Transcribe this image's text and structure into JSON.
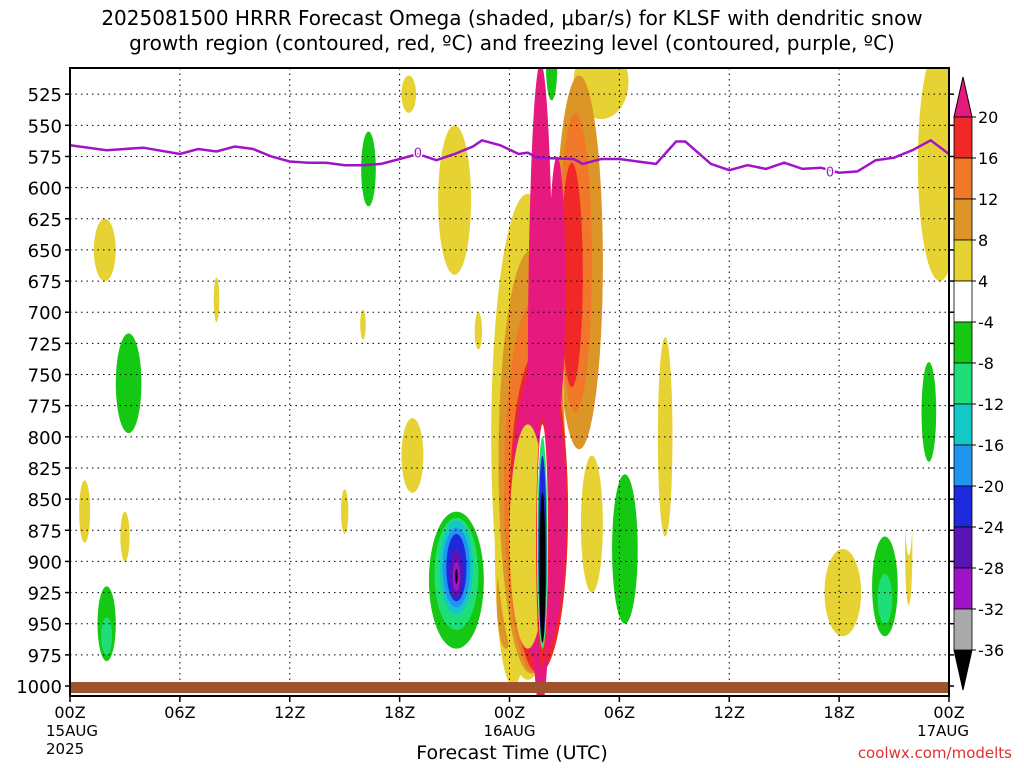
{
  "title_lines": [
    "2025081500 HRRR Forecast Omega (shaded, μbar/s) for KLSF with dendritic snow",
    "growth region (contoured, red, ºC) and freezing level (contoured, purple, ºC)"
  ],
  "credit": "coolwx.com/modelts",
  "chart_data": {
    "type": "heatmap",
    "xlabel": "Forecast Time (UTC)",
    "x_range_hours": [
      0,
      48
    ],
    "x_ticks": [
      {
        "hour": 0,
        "label": "00Z",
        "sub1": "15AUG",
        "sub2": "2025"
      },
      {
        "hour": 6,
        "label": "06Z"
      },
      {
        "hour": 12,
        "label": "12Z"
      },
      {
        "hour": 18,
        "label": "18Z"
      },
      {
        "hour": 24,
        "label": "00Z",
        "sub1": "16AUG"
      },
      {
        "hour": 30,
        "label": "06Z"
      },
      {
        "hour": 36,
        "label": "12Z"
      },
      {
        "hour": 42,
        "label": "18Z"
      },
      {
        "hour": 48,
        "label": "00Z",
        "sub1": "17AUG"
      }
    ],
    "y_range_mb": [
      1008,
      504
    ],
    "y_ticks": [
      525,
      550,
      575,
      600,
      625,
      650,
      675,
      700,
      725,
      750,
      775,
      800,
      825,
      850,
      875,
      900,
      925,
      950,
      975,
      1000
    ],
    "colorbar": {
      "labels": [
        "20",
        "16",
        "12",
        "8",
        "4",
        "-4",
        "-8",
        "-12",
        "-16",
        "-20",
        "-24",
        "-28",
        "-32",
        "-36"
      ],
      "colors": [
        "#e6197f",
        "#f02828",
        "#f07828",
        "#dc9628",
        "#e6d232",
        "#ffffff",
        "#14c814",
        "#1ede78",
        "#14c8c8",
        "#1e96f0",
        "#1e28dc",
        "#5a14b4",
        "#a014c8",
        "#aaaaaa"
      ],
      "top_color": "#e6197f",
      "bottom_color": "#000000"
    },
    "freezing_level": {
      "color": "#a014c8",
      "label": "0",
      "points": [
        [
          0,
          566
        ],
        [
          2,
          570
        ],
        [
          4,
          568
        ],
        [
          6,
          573
        ],
        [
          7,
          569
        ],
        [
          8,
          571
        ],
        [
          9,
          567
        ],
        [
          10,
          569
        ],
        [
          11,
          575
        ],
        [
          12,
          579
        ],
        [
          13,
          580
        ],
        [
          14,
          580
        ],
        [
          15,
          582
        ],
        [
          16,
          582
        ],
        [
          17,
          581
        ],
        [
          18,
          577
        ],
        [
          19,
          573
        ],
        [
          20,
          578
        ],
        [
          21,
          573
        ],
        [
          22,
          567
        ],
        [
          22.5,
          562
        ],
        [
          23.5,
          566
        ],
        [
          24.5,
          573
        ],
        [
          25,
          572
        ],
        [
          25.5,
          576
        ],
        [
          27.5,
          577
        ],
        [
          28,
          581
        ],
        [
          29,
          577
        ],
        [
          30,
          577
        ],
        [
          31,
          579
        ],
        [
          32,
          581
        ],
        [
          33.1,
          563
        ],
        [
          33.6,
          563
        ],
        [
          35,
          581
        ],
        [
          36,
          586
        ],
        [
          37,
          582
        ],
        [
          38,
          585
        ],
        [
          39,
          580
        ],
        [
          40,
          585
        ],
        [
          41,
          584
        ],
        [
          42,
          588
        ],
        [
          43,
          587
        ],
        [
          44,
          578
        ],
        [
          45,
          576
        ],
        [
          46,
          570
        ],
        [
          47,
          562
        ],
        [
          48,
          573
        ]
      ],
      "label_points": [
        [
          19,
          572
        ],
        [
          41.5,
          587
        ]
      ]
    },
    "ground": {
      "color": "#a0522d",
      "top_mb": 1000
    },
    "shaded_regions": [
      {
        "value": -4,
        "x": 2.2,
        "p": 635,
        "rx": 0.7,
        "rp": 40
      },
      {
        "value": 4,
        "x": 1.9,
        "p": 650,
        "rx": 0.6,
        "rp": 25
      },
      {
        "value": -4,
        "x": 8.8,
        "p": 683,
        "rx": 0.3,
        "rp": 40
      },
      {
        "value": 4,
        "x": 8,
        "p": 690,
        "rx": 0.15,
        "rp": 18
      },
      {
        "value": -4,
        "x": 3.2,
        "p": 757,
        "rx": 1.0,
        "rp": 60
      },
      {
        "value": -8,
        "x": 3.2,
        "p": 757,
        "rx": 0.7,
        "rp": 40
      },
      {
        "value": -4,
        "x": 0.8,
        "p": 860,
        "rx": 0.5,
        "rp": 50
      },
      {
        "value": 4,
        "x": 0.8,
        "p": 860,
        "rx": 0.3,
        "rp": 25
      },
      {
        "value": -4,
        "x": 2.0,
        "p": 940,
        "rx": 0.8,
        "rp": 50
      },
      {
        "value": -8,
        "x": 2.0,
        "p": 950,
        "rx": 0.5,
        "rp": 30
      },
      {
        "value": -12,
        "x": 2.0,
        "p": 960,
        "rx": 0.3,
        "rp": 15
      },
      {
        "value": 4,
        "x": 3.0,
        "p": 880,
        "rx": 0.25,
        "rp": 20
      },
      {
        "value": -4,
        "x": 8.0,
        "p": 925,
        "rx": 0.25,
        "rp": 18
      },
      {
        "value": -4,
        "x": 16.0,
        "p": 580,
        "rx": 1.1,
        "rp": 68
      },
      {
        "value": -8,
        "x": 16.3,
        "p": 585,
        "rx": 0.4,
        "rp": 30
      },
      {
        "value": 4,
        "x": 18.5,
        "p": 525,
        "rx": 0.4,
        "rp": 15
      },
      {
        "value": -4,
        "x": 19.2,
        "p": 545,
        "rx": 0.15,
        "rp": 28
      },
      {
        "value": 4,
        "x": 21,
        "p": 610,
        "rx": 0.9,
        "rp": 60
      },
      {
        "value": 4,
        "x": 16,
        "p": 710,
        "rx": 0.15,
        "rp": 12
      },
      {
        "value": -4,
        "x": 17.5,
        "p": 765,
        "rx": 0.15,
        "rp": 15
      },
      {
        "value": 4,
        "x": 18.7,
        "p": 815,
        "rx": 0.6,
        "rp": 30
      },
      {
        "value": 4,
        "x": 15,
        "p": 860,
        "rx": 0.2,
        "rp": 18
      },
      {
        "value": -4,
        "x": 20.5,
        "p": 770,
        "rx": 0.5,
        "rp": 60
      },
      {
        "value": -4,
        "x": 20.9,
        "p": 920,
        "rx": 2.0,
        "rp": 70
      },
      {
        "value": -8,
        "x": 21.1,
        "p": 915,
        "rx": 1.5,
        "rp": 55
      },
      {
        "value": -12,
        "x": 21.1,
        "p": 910,
        "rx": 1.2,
        "rp": 45
      },
      {
        "value": -16,
        "x": 21.1,
        "p": 905,
        "rx": 0.9,
        "rp": 38
      },
      {
        "value": -20,
        "x": 21.1,
        "p": 905,
        "rx": 0.75,
        "rp": 32
      },
      {
        "value": -24,
        "x": 21.1,
        "p": 905,
        "rx": 0.55,
        "rp": 27
      },
      {
        "value": -28,
        "x": 21.1,
        "p": 910,
        "rx": 0.35,
        "rp": 20
      },
      {
        "value": -32,
        "x": 21.1,
        "p": 912,
        "rx": 0.2,
        "rp": 12
      },
      {
        "value": -36,
        "x": 21.1,
        "p": 912,
        "rx": 0.07,
        "rp": 6
      },
      {
        "value": -4,
        "x": 23.0,
        "p": 560,
        "rx": 0.9,
        "rp": 75
      },
      {
        "value": -4,
        "x": 22.7,
        "p": 510,
        "rx": 0.8,
        "rp": 35
      },
      {
        "value": 4,
        "x": 22.3,
        "p": 715,
        "rx": 0.2,
        "rp": 15
      },
      {
        "value": -4,
        "x": 21.8,
        "p": 830,
        "rx": 0.15,
        "rp": 20
      },
      {
        "value": 4,
        "x": 24.2,
        "p": 890,
        "rx": 1.0,
        "rp": 110
      },
      {
        "value": 8,
        "x": 23.8,
        "p": 930,
        "rx": 0.5,
        "rp": 40
      },
      {
        "value": -4,
        "x": 28.0,
        "p": 530,
        "rx": 1.8,
        "rp": 35
      },
      {
        "value": 4,
        "x": 29.0,
        "p": 515,
        "rx": 1.5,
        "rp": 30
      },
      {
        "value": -4,
        "x": 26.3,
        "p": 510,
        "rx": 0.8,
        "rp": 40
      },
      {
        "value": -8,
        "x": 26.3,
        "p": 505,
        "rx": 0.3,
        "rp": 25
      },
      {
        "value": 8,
        "x": 27.8,
        "p": 660,
        "rx": 1.3,
        "rp": 150
      },
      {
        "value": 12,
        "x": 27.6,
        "p": 660,
        "rx": 0.9,
        "rp": 120
      },
      {
        "value": 16,
        "x": 27.4,
        "p": 670,
        "rx": 0.6,
        "rp": 90
      },
      {
        "value": -4,
        "x": 30.3,
        "p": 780,
        "rx": 1.2,
        "rp": 165
      },
      {
        "value": -8,
        "x": 30.3,
        "p": 890,
        "rx": 0.7,
        "rp": 60
      },
      {
        "value": -4,
        "x": 33.2,
        "p": 790,
        "rx": 0.4,
        "rp": 60
      },
      {
        "value": 4,
        "x": 28.5,
        "p": 870,
        "rx": 0.6,
        "rp": 55
      },
      {
        "value": 4,
        "x": 25.0,
        "p": 800,
        "rx": 2.0,
        "rp": 195
      },
      {
        "value": 8,
        "x": 25.2,
        "p": 820,
        "rx": 1.8,
        "rp": 170
      },
      {
        "value": 12,
        "x": 25.4,
        "p": 840,
        "rx": 1.7,
        "rp": 150
      },
      {
        "value": 16,
        "x": 25.6,
        "p": 860,
        "rx": 1.6,
        "rp": 130
      },
      {
        "value": 20,
        "x": 25.6,
        "p": 860,
        "rx": 1.5,
        "rp": 120
      },
      {
        "value": 20,
        "x": 25.7,
        "p": 760,
        "rx": 0.7,
        "rp": 260
      },
      {
        "value": 20,
        "x": 26.6,
        "p": 680,
        "rx": 0.45,
        "rp": 105
      },
      {
        "value": 4,
        "x": 25.0,
        "p": 880,
        "rx": 1.0,
        "rp": 90
      },
      {
        "value": 16,
        "x": 25.8,
        "p": 885,
        "rx": 0.35,
        "rp": 100
      },
      {
        "value": -4,
        "x": 25.8,
        "p": 880,
        "rx": 0.3,
        "rp": 90
      },
      {
        "value": -12,
        "x": 25.8,
        "p": 885,
        "rx": 0.27,
        "rp": 85
      },
      {
        "value": -24,
        "x": 25.8,
        "p": 890,
        "rx": 0.22,
        "rp": 75
      },
      {
        "value": -36,
        "x": 25.8,
        "p": 905,
        "rx": 0.16,
        "rp": 60
      },
      {
        "value": 4,
        "x": 42.2,
        "p": 925,
        "rx": 1.0,
        "rp": 35
      },
      {
        "value": -4,
        "x": 44.5,
        "p": 920,
        "rx": 1.2,
        "rp": 70
      },
      {
        "value": -8,
        "x": 44.5,
        "p": 920,
        "rx": 0.7,
        "rp": 40
      },
      {
        "value": -12,
        "x": 44.5,
        "p": 930,
        "rx": 0.4,
        "rp": 20
      },
      {
        "value": 4,
        "x": 45.8,
        "p": 890,
        "rx": 0.2,
        "rp": 45
      },
      {
        "value": -4,
        "x": 47.0,
        "p": 800,
        "rx": 0.8,
        "rp": 100
      },
      {
        "value": -8,
        "x": 46.9,
        "p": 780,
        "rx": 0.4,
        "rp": 40
      },
      {
        "value": 4,
        "x": 47.5,
        "p": 580,
        "rx": 1.2,
        "rp": 95
      },
      {
        "value": 4,
        "x": 32.5,
        "p": 800,
        "rx": 0.4,
        "rp": 80
      },
      {
        "value": -4,
        "x": 45.8,
        "p": 860,
        "rx": 0.2,
        "rp": 35
      }
    ]
  }
}
